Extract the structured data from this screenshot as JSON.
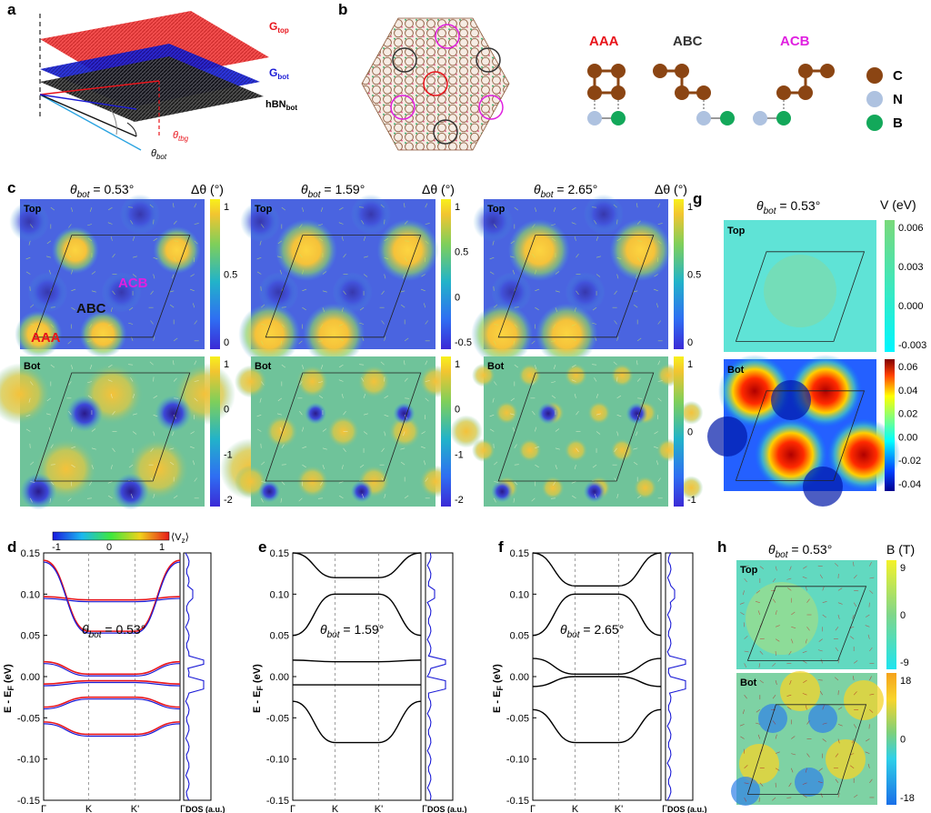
{
  "panels": {
    "a": {
      "letter": "a",
      "g_top": "G",
      "g_top_sub": "top",
      "g_bot": "G",
      "g_bot_sub": "bot",
      "hbn": "hBN",
      "hbn_sub": "bot",
      "theta": "θ",
      "theta_tbg_sub": "tbg",
      "theta_bot_sub": "bot"
    },
    "b": {
      "letter": "b",
      "stackings": [
        "AAA",
        "ABC",
        "ACB"
      ],
      "elements": [
        "C",
        "N",
        "B"
      ]
    },
    "c": {
      "letter": "c",
      "titles": [
        {
          "pre": "θ",
          "sub": "bot",
          "post": " = 0.53°"
        },
        {
          "pre": "θ",
          "sub": "bot",
          "post": " = 1.59°"
        },
        {
          "pre": "θ",
          "sub": "bot",
          "post": " = 2.65°"
        }
      ],
      "colorbar_label": "Δθ (°)",
      "row_labels": [
        "Top",
        "Bot"
      ],
      "region_labels": {
        "aaa": "AAA",
        "abc": "ABC",
        "acb": "ACB"
      },
      "top_ticks": [
        [
          "1",
          "0.5",
          "0"
        ],
        [
          "1",
          "0.5",
          "0",
          "-0.5"
        ],
        [
          "1",
          "0.5",
          "0"
        ]
      ],
      "bot_ticks": [
        [
          "1",
          "0",
          "-1",
          "-2"
        ],
        [
          "1",
          "0",
          "-1",
          "-2"
        ],
        [
          "1",
          "0",
          "-1"
        ]
      ]
    },
    "g": {
      "letter": "g",
      "title": {
        "pre": "θ",
        "sub": "bot",
        "post": " = 0.53°"
      },
      "colorbar_label": "V (eV)",
      "row_labels": [
        "Top",
        "Bot"
      ],
      "top_ticks": [
        "0.006",
        "0.003",
        "0.000",
        "-0.003"
      ],
      "bot_ticks": [
        "0.06",
        "0.04",
        "0.02",
        "0.00",
        "-0.02",
        "-0.04"
      ]
    },
    "h": {
      "letter": "h",
      "title": {
        "pre": "θ",
        "sub": "bot",
        "post": " = 0.53°"
      },
      "colorbar_label": "B (T)",
      "row_labels": [
        "Top",
        "Bot"
      ],
      "top_ticks": [
        "9",
        "0",
        "-9"
      ],
      "bot_ticks": [
        "18",
        "0",
        "-18"
      ]
    },
    "bands": {
      "letters": [
        "d",
        "e",
        "f"
      ],
      "ylabel": "E - E",
      "ylabel_sub": "F",
      "ylabel_unit": " (eV)",
      "yticks": [
        "0.15",
        "0.10",
        "0.05",
        "0.00",
        "-0.05",
        "-0.10",
        "-0.15"
      ],
      "xticks": [
        "Γ",
        "K",
        "K'",
        "Γ"
      ],
      "dos_label": "DOS (a.u.)",
      "annot": [
        {
          "pre": "θ",
          "sub": "bot",
          "post": " = 0.53°"
        },
        {
          "pre": "θ",
          "sub": "bot",
          "post": " = 1.59°"
        },
        {
          "pre": "θ",
          "sub": "bot",
          "post": " = 2.65°"
        }
      ],
      "vz_ticks": [
        "-1",
        "0",
        "1"
      ],
      "vz_label": "⟨V",
      "vz_sub": "z",
      "vz_close": "⟩"
    }
  },
  "chart_data": [
    {
      "type": "line",
      "title": "θbot = 0.53°",
      "xlabel": "",
      "ylabel": "E - EF (eV)",
      "ylim": [
        -0.15,
        0.15
      ],
      "categories": [
        "Γ",
        "K",
        "K'",
        "Γ"
      ],
      "series": [
        {
          "values": [
            0.018,
            0.003,
            0.003,
            0.018
          ]
        },
        {
          "values": [
            -0.009,
            -0.005,
            -0.005,
            -0.009
          ]
        },
        {
          "values": [
            0.097,
            0.093,
            0.093,
            0.097
          ]
        },
        {
          "values": [
            0.141,
            0.055,
            0.055,
            0.141
          ]
        },
        {
          "values": [
            -0.037,
            -0.025,
            -0.025,
            -0.037
          ]
        },
        {
          "values": [
            -0.055,
            -0.07,
            -0.07,
            -0.055
          ]
        }
      ]
    },
    {
      "type": "line",
      "title": "θbot = 1.59°",
      "xlabel": "",
      "ylabel": "E - EF (eV)",
      "ylim": [
        -0.15,
        0.15
      ],
      "categories": [
        "Γ",
        "K",
        "K'",
        "Γ"
      ],
      "series": [
        {
          "values": [
            0.02,
            0.018,
            0.018,
            0.02
          ]
        },
        {
          "values": [
            -0.01,
            -0.01,
            -0.01,
            -0.01
          ]
        },
        {
          "values": [
            0.05,
            0.1,
            0.1,
            0.05
          ]
        },
        {
          "values": [
            0.15,
            0.12,
            0.12,
            0.15
          ]
        },
        {
          "values": [
            -0.03,
            -0.08,
            -0.08,
            -0.03
          ]
        }
      ]
    },
    {
      "type": "line",
      "title": "θbot = 2.65°",
      "xlabel": "",
      "ylabel": "E - EF (eV)",
      "ylim": [
        -0.15,
        0.15
      ],
      "categories": [
        "Γ",
        "K",
        "K'",
        "Γ"
      ],
      "series": [
        {
          "values": [
            0.022,
            0.003,
            0.003,
            0.022
          ]
        },
        {
          "values": [
            -0.012,
            0.0,
            0.0,
            -0.012
          ]
        },
        {
          "values": [
            0.05,
            0.1,
            0.1,
            0.05
          ]
        },
        {
          "values": [
            0.15,
            0.11,
            0.11,
            0.15
          ]
        },
        {
          "values": [
            -0.04,
            -0.08,
            -0.08,
            -0.04
          ]
        }
      ]
    }
  ],
  "colors": {
    "red": "#e8141b",
    "blue": "#1b1bd6",
    "magenta": "#e020e0",
    "carbon": "#8b4513",
    "nitrogen": "#aec2e0",
    "boron": "#13a85a"
  }
}
